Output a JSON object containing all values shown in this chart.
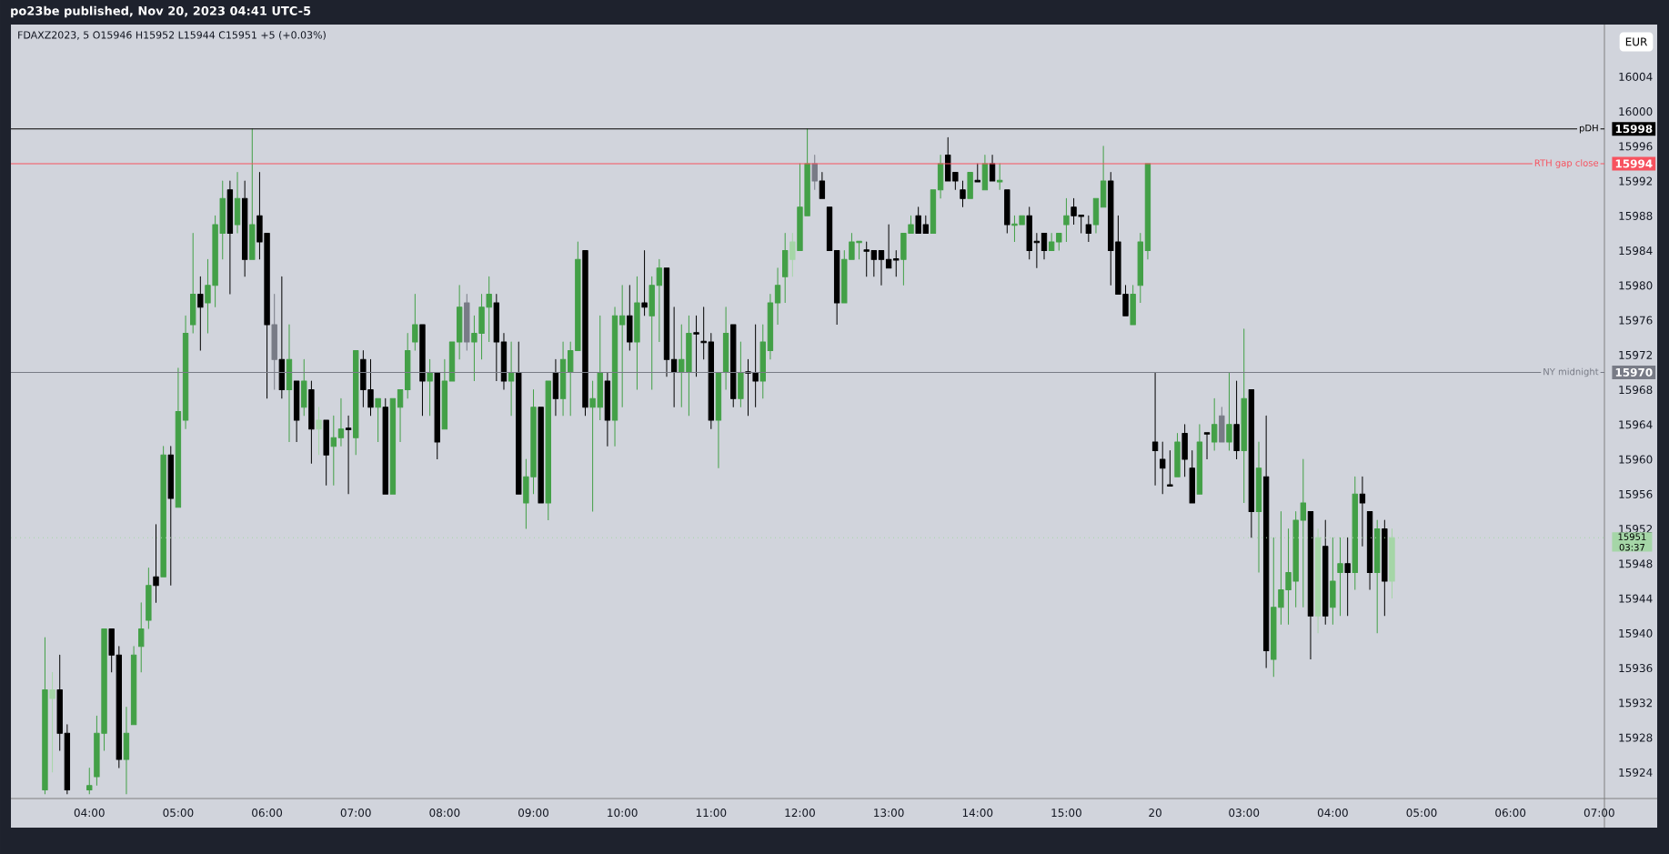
{
  "chart_data": {
    "type": "candlestick",
    "title": "FDAXZ2023, 5  O15946 H15952 L15944 C15951 +5 (+0.03%)",
    "annotations": [
      "po23be published, Nov 20, 2023 04:41 UTC-5",
      "EUR",
      "15998",
      "15994",
      "15970",
      "15951",
      "03:37"
    ],
    "categories": [
      null,
      null,
      null,
      null,
      null,
      null,
      "04:00",
      null,
      null,
      null,
      null,
      null,
      null,
      null,
      null,
      null,
      null,
      null,
      "05:00",
      null,
      null,
      null,
      null,
      null,
      null,
      null,
      null,
      null,
      null,
      null,
      "06:00",
      null,
      null,
      null,
      null,
      null,
      null,
      null,
      null,
      null,
      null,
      null,
      "07:00",
      null,
      null,
      null,
      null,
      null,
      null,
      null,
      null,
      null,
      null,
      null,
      "08:00",
      null,
      null,
      null,
      null,
      null,
      null,
      null,
      null,
      null,
      null,
      null,
      "09:00",
      null,
      null,
      null,
      null,
      null,
      null,
      null,
      null,
      null,
      null,
      null,
      "10:00",
      null,
      null,
      null,
      null,
      null,
      null,
      null,
      null,
      null,
      null,
      null,
      "11:00",
      null,
      null,
      null,
      null,
      null,
      null,
      null,
      null,
      null,
      null,
      null,
      "12:00",
      null,
      null,
      null,
      null,
      null,
      null,
      null,
      null,
      null,
      null,
      null,
      "13:00",
      null,
      null,
      null,
      null,
      null,
      null,
      null,
      null,
      null,
      null,
      null,
      "14:00",
      null,
      null,
      null,
      null,
      null,
      null,
      null,
      null,
      null,
      null,
      null,
      "15:00",
      null,
      null,
      null,
      null,
      null,
      null,
      null,
      null,
      null,
      null,
      null,
      "20",
      null,
      null,
      null,
      null,
      null,
      null,
      null,
      null,
      null,
      null,
      null,
      "03:00",
      null,
      null,
      null,
      null,
      null,
      null,
      null,
      null,
      null,
      null,
      null,
      "04:00",
      null,
      null,
      null,
      null,
      null,
      null,
      null,
      null,
      null,
      null,
      null,
      "05:00",
      null,
      null,
      null,
      null,
      null,
      null,
      null,
      null,
      null,
      null,
      null,
      "06:00",
      null,
      null,
      null,
      null,
      null,
      null,
      null,
      null,
      null,
      null,
      null,
      "07:00"
    ],
    "ohlc": [
      [
        15922,
        15939.5,
        15921.5,
        15933.5
      ],
      [
        15932.5,
        15935.5,
        15924,
        15933.5
      ],
      [
        15933.5,
        15937.5,
        15926.5,
        15928.5
      ],
      [
        15928.5,
        15929.5,
        15921.5,
        15922
      ],
      null,
      null,
      [
        15922,
        15924.5,
        15921.5,
        15922.5
      ],
      [
        15923.5,
        15930.5,
        15922.5,
        15928.5
      ],
      [
        15928.5,
        15940.5,
        15926.5,
        15940.5
      ],
      [
        15940.5,
        15940.5,
        15935.5,
        15937.5
      ],
      [
        15937.5,
        15938.5,
        15924.5,
        15925.5
      ],
      [
        15925.5,
        15931.5,
        15921.5,
        15928.5
      ],
      [
        15929.5,
        15938.5,
        15929.5,
        15937.5
      ],
      [
        15938.5,
        15943.5,
        15935.5,
        15940.5
      ],
      [
        15941.5,
        15947.5,
        15940.5,
        15945.5
      ],
      [
        15946.5,
        15952.5,
        15943.5,
        15945.5
      ],
      [
        15946.5,
        15961.5,
        15946.5,
        15960.5
      ],
      [
        15960.5,
        15961.5,
        15945.5,
        15955.5
      ],
      [
        15954.5,
        15970.5,
        15954.5,
        15965.5
      ],
      [
        15964.5,
        15976.5,
        15963.5,
        15974.5
      ],
      [
        15975.5,
        15986,
        15974.5,
        15979
      ],
      [
        15979,
        15981,
        15972.5,
        15977.5
      ],
      [
        15978,
        15983,
        15974.5,
        15980
      ],
      [
        15980,
        15988,
        15977.5,
        15987
      ],
      [
        15986,
        15992,
        15983,
        15990
      ],
      [
        15991,
        15992,
        15979,
        15986
      ],
      [
        15987,
        15993,
        15986,
        15990
      ],
      [
        15990,
        15992,
        15981,
        15983
      ],
      [
        15983,
        15998,
        15983,
        15987
      ],
      [
        15988,
        15993,
        15983,
        15985
      ],
      [
        15986,
        15986,
        15967,
        15975.5
      ],
      [
        15975.5,
        15979,
        15968,
        15971.5
      ],
      [
        15971.5,
        15981,
        15967,
        15968
      ],
      [
        15968,
        15975.5,
        15962,
        15971.5
      ],
      [
        15969,
        15969,
        15962,
        15964.5
      ],
      [
        15966,
        15971.5,
        15965,
        15969
      ],
      [
        15968,
        15969,
        15959.5,
        15963.5
      ],
      [
        15963.5,
        15966,
        15960.5,
        15964.5
      ],
      [
        15964.5,
        15964.5,
        15957,
        15960.5
      ],
      [
        15961.5,
        15965,
        15957,
        15962.5
      ],
      [
        15962.5,
        15967,
        15961.5,
        15963.5
      ],
      [
        15963.5,
        15965,
        15956,
        15963.5
      ],
      [
        15962.5,
        15972.5,
        15960.5,
        15972.5
      ],
      [
        15971.5,
        15972.5,
        15966,
        15968
      ],
      [
        15968,
        15971.5,
        15965,
        15966
      ],
      [
        15966,
        15967,
        15962,
        15967
      ],
      [
        15966,
        15967,
        15956,
        15956
      ],
      [
        15956,
        15967,
        15956,
        15967
      ],
      [
        15966,
        15968,
        15962,
        15968
      ],
      [
        15968,
        15974.5,
        15967,
        15972.5
      ],
      [
        15973.5,
        15979,
        15972.5,
        15975.5
      ],
      [
        15975.5,
        15975.5,
        15965,
        15969
      ],
      [
        15969,
        15971.5,
        15965,
        15970
      ],
      [
        15970,
        15970,
        15960,
        15962
      ],
      [
        15963.5,
        15971.5,
        15963.5,
        15969
      ],
      [
        15969,
        15973.5,
        15969,
        15973.5
      ],
      [
        15973.5,
        15980,
        15971.5,
        15977.5
      ],
      [
        15978,
        15979,
        15972.5,
        15973.5
      ],
      [
        15973.5,
        15976.5,
        15969,
        15974.5
      ],
      [
        15974.5,
        15979,
        15971.5,
        15977.5
      ],
      [
        15977.5,
        15981,
        15973.5,
        15979
      ],
      [
        15978,
        15979,
        15969,
        15973.5
      ],
      [
        15973.5,
        15974.5,
        15968,
        15969
      ],
      [
        15969,
        15973.5,
        15965,
        15970
      ],
      [
        15970,
        15973.5,
        15956,
        15956
      ],
      [
        15955,
        15960,
        15952,
        15958
      ],
      [
        15958,
        15968,
        15956,
        15966
      ],
      [
        15966,
        15966,
        15955,
        15955
      ],
      [
        15955,
        15969,
        15953,
        15969
      ],
      [
        15970,
        15971.5,
        15965,
        15967
      ],
      [
        15967,
        15973.5,
        15965,
        15971.5
      ],
      [
        15970,
        15973.5,
        15965,
        15972.5
      ],
      [
        15972.5,
        15985,
        15972.5,
        15983
      ],
      [
        15984,
        15984,
        15965,
        15966
      ],
      [
        15966,
        15969,
        15954,
        15967
      ],
      [
        15966,
        15976.5,
        15964.5,
        15970
      ],
      [
        15969,
        15970,
        15961.5,
        15964.5
      ],
      [
        15964.5,
        15977.5,
        15961.5,
        15976.5
      ],
      [
        15975.5,
        15980,
        15966,
        15976.5
      ],
      [
        15976.5,
        15980,
        15972.5,
        15973.5
      ],
      [
        15973.5,
        15981,
        15968,
        15978
      ],
      [
        15978,
        15984,
        15976.5,
        15977.5
      ],
      [
        15976.5,
        15981,
        15968,
        15980
      ],
      [
        15980,
        15983,
        15973.5,
        15982
      ],
      [
        15982,
        15982,
        15969.5,
        15971.5
      ],
      [
        15971.5,
        15977.5,
        15966,
        15970
      ],
      [
        15970,
        15975.5,
        15966,
        15971.5
      ],
      [
        15970,
        15976.5,
        15965,
        15974.5
      ],
      [
        15974.5,
        15976.5,
        15969.5,
        15974.5
      ],
      [
        15973.5,
        15977.5,
        15971.5,
        15973.5
      ],
      [
        15973.5,
        15974.5,
        15963.5,
        15964.5
      ],
      [
        15964.5,
        15970,
        15959,
        15970
      ],
      [
        15970,
        15977.5,
        15968,
        15974.5
      ],
      [
        15975.5,
        15975.5,
        15966,
        15967
      ],
      [
        15967,
        15973.5,
        15966,
        15970
      ],
      [
        15970,
        15971.5,
        15965,
        15970
      ],
      [
        15970,
        15975.5,
        15966,
        15969
      ],
      [
        15969,
        15975.5,
        15967,
        15973.5
      ],
      [
        15972.5,
        15979,
        15971.5,
        15978
      ],
      [
        15978,
        15982,
        15975.5,
        15980
      ],
      [
        15981,
        15986,
        15978,
        15984
      ],
      [
        15983,
        15986,
        15981,
        15985
      ],
      [
        15984,
        15994,
        15984,
        15989
      ],
      [
        15988,
        15998,
        15988,
        15994
      ],
      [
        15994,
        15995,
        15991,
        15992
      ],
      [
        15992,
        15993,
        15990,
        15990
      ],
      [
        15989,
        15989,
        15984,
        15984
      ],
      [
        15984,
        15984,
        15975.5,
        15978
      ],
      [
        15978,
        15984,
        15978,
        15983
      ],
      [
        15983,
        15986,
        15983,
        15985
      ],
      [
        15985,
        15985,
        15983,
        15985
      ],
      [
        15984,
        15985,
        15981,
        15984
      ],
      [
        15984,
        15984,
        15981,
        15983
      ],
      [
        15984,
        15984,
        15980,
        15983
      ],
      [
        15983,
        15987,
        15982,
        15982
      ],
      [
        15983,
        15984,
        15981,
        15983
      ],
      [
        15983,
        15986,
        15980,
        15986
      ],
      [
        15986,
        15988,
        15986,
        15987
      ],
      [
        15988,
        15989,
        15986,
        15986
      ],
      [
        15987,
        15988,
        15986,
        15986
      ],
      [
        15986,
        15991,
        15986,
        15991
      ],
      [
        15991,
        15995,
        15990,
        15994
      ],
      [
        15995,
        15997,
        15992,
        15992
      ],
      [
        15993,
        15993,
        15991,
        15992
      ],
      [
        15991,
        15992,
        15989,
        15990
      ],
      [
        15990,
        15993,
        15990,
        15993
      ],
      [
        15992,
        15994,
        15992,
        15992
      ],
      [
        15991,
        15995,
        15991,
        15994
      ],
      [
        15994,
        15995,
        15992,
        15992
      ],
      [
        15992,
        15994,
        15991,
        15992
      ],
      [
        15991,
        15991,
        15986,
        15987
      ],
      [
        15987,
        15988,
        15985,
        15987
      ],
      [
        15987,
        15988,
        15987,
        15988
      ],
      [
        15988,
        15989,
        15983,
        15984
      ],
      [
        15985,
        15986,
        15982,
        15985
      ],
      [
        15986,
        15986,
        15983,
        15984
      ],
      [
        15984,
        15986,
        15984,
        15985
      ],
      [
        15985,
        15986,
        15984,
        15986
      ],
      [
        15987,
        15990,
        15985,
        15988
      ],
      [
        15989,
        15990,
        15987,
        15988
      ],
      [
        15988,
        15988,
        15986,
        15988
      ],
      [
        15987,
        15988,
        15985,
        15986
      ],
      [
        15987,
        15990,
        15986,
        15990
      ],
      [
        15989,
        15996,
        15989,
        15992
      ],
      [
        15992,
        15993,
        15980,
        15984
      ],
      [
        15985,
        15988,
        15979,
        15979
      ],
      [
        15979,
        15980,
        15976.5,
        15976.5
      ],
      [
        15975.5,
        15980,
        15975.5,
        15979
      ],
      [
        15980,
        15986,
        15978,
        15985
      ],
      [
        15984,
        15994,
        15983,
        15994
      ],
      [
        15962,
        15970,
        15957,
        15961
      ],
      [
        15960,
        15962,
        15956,
        15959
      ],
      [
        15957,
        15961,
        15957,
        15957
      ],
      [
        15958,
        15963,
        15958,
        15962
      ],
      [
        15963,
        15964,
        15958,
        15960
      ],
      [
        15959,
        15961,
        15955,
        15955
      ],
      [
        15956,
        15964,
        15956,
        15962
      ],
      [
        15963,
        15963,
        15960,
        15963
      ],
      [
        15962,
        15967,
        15961,
        15964
      ],
      [
        15965,
        15966,
        15962,
        15962
      ],
      [
        15962,
        15970,
        15961,
        15964
      ],
      [
        15964,
        15969,
        15960,
        15961
      ],
      [
        15961,
        15975,
        15955,
        15967
      ],
      [
        15968,
        15968,
        15951,
        15954
      ],
      [
        15954,
        15962,
        15947,
        15959
      ],
      [
        15958,
        15965,
        15936,
        15938
      ],
      [
        15937,
        15951,
        15935,
        15943
      ],
      [
        15943,
        15954,
        15941,
        15945
      ],
      [
        15945,
        15952,
        15941,
        15947
      ],
      [
        15946,
        15954,
        15943,
        15953
      ],
      [
        15953,
        15960,
        15943,
        15955
      ],
      [
        15954,
        15954,
        15937,
        15942
      ],
      [
        15942,
        15952,
        15940,
        15951
      ],
      [
        15950,
        15953,
        15941,
        15942
      ],
      [
        15943,
        15951,
        15941,
        15946
      ],
      [
        15947,
        15951,
        15942,
        15948
      ],
      [
        15948,
        15951,
        15942,
        15947
      ],
      [
        15947,
        15958,
        15945,
        15956
      ],
      [
        15956,
        15958,
        15950,
        15955
      ],
      [
        15954,
        15954,
        15945,
        15947
      ],
      [
        15947,
        15953,
        15940,
        15952
      ],
      [
        15952,
        15953,
        15942,
        15946
      ],
      [
        15946,
        15952,
        15944,
        15951
      ],
      null,
      null,
      null,
      null,
      null,
      null,
      null,
      null,
      null,
      null,
      null,
      null,
      null,
      null,
      null,
      null,
      null,
      null,
      null,
      null,
      null,
      null,
      null,
      null,
      null,
      null,
      null,
      null
    ],
    "colors": [
      "#43a047",
      "#a5d6a7",
      "#000000",
      "#000000",
      null,
      null,
      "#43a047",
      "#43a047",
      "#43a047",
      "#000000",
      "#000000",
      "#43a047",
      "#43a047",
      "#43a047",
      "#43a047",
      "#000000",
      "#43a047",
      "#000000",
      "#43a047",
      "#43a047",
      "#43a047",
      "#000000",
      "#43a047",
      "#43a047",
      "#43a047",
      "#000000",
      "#43a047",
      "#000000",
      "#43a047",
      "#000000",
      "#000000",
      "#787b86",
      "#000000",
      "#43a047",
      "#000000",
      "#43a047",
      "#000000",
      "#a5d6a7",
      "#000000",
      "#43a047",
      "#43a047",
      "#000000",
      "#43a047",
      "#000000",
      "#000000",
      "#43a047",
      "#000000",
      "#43a047",
      "#43a047",
      "#43a047",
      "#43a047",
      "#000000",
      "#43a047",
      "#000000",
      "#43a047",
      "#43a047",
      "#43a047",
      "#787b86",
      "#43a047",
      "#43a047",
      "#43a047",
      "#000000",
      "#000000",
      "#43a047",
      "#000000",
      "#43a047",
      "#43a047",
      "#000000",
      "#43a047",
      "#000000",
      "#43a047",
      "#43a047",
      "#43a047",
      "#000000",
      "#43a047",
      "#43a047",
      "#000000",
      "#43a047",
      "#43a047",
      "#000000",
      "#43a047",
      "#000000",
      "#43a047",
      "#43a047",
      "#000000",
      "#000000",
      "#43a047",
      "#43a047",
      "#000000",
      "#000000",
      "#000000",
      "#43a047",
      "#43a047",
      "#000000",
      "#43a047",
      "#000000",
      "#000000",
      "#43a047",
      "#43a047",
      "#43a047",
      "#43a047",
      "#a5d6a7",
      "#43a047",
      "#43a047",
      "#787b86",
      "#000000",
      "#000000",
      "#000000",
      "#43a047",
      "#43a047",
      "#43a047",
      "#000000",
      "#000000",
      "#000000",
      "#000000",
      "#000000",
      "#43a047",
      "#43a047",
      "#000000",
      "#000000",
      "#43a047",
      "#43a047",
      "#000000",
      "#000000",
      "#000000",
      "#43a047",
      "#000000",
      "#43a047",
      "#000000",
      "#43a047",
      "#000000",
      "#43a047",
      "#43a047",
      "#000000",
      "#000000",
      "#000000",
      "#43a047",
      "#43a047",
      "#43a047",
      "#000000",
      "#000000",
      "#000000",
      "#43a047",
      "#43a047",
      "#000000",
      "#000000",
      "#000000",
      "#43a047",
      "#43a047",
      "#43a047",
      "#000000",
      "#000000",
      "#000000",
      "#43a047",
      "#000000",
      "#000000",
      "#43a047",
      "#000000",
      "#43a047",
      "#787b86",
      "#43a047",
      "#000000",
      "#43a047",
      "#000000",
      "#43a047",
      "#000000",
      "#43a047",
      "#43a047",
      "#43a047",
      "#43a047",
      "#43a047",
      "#000000",
      "#a5d6a7",
      "#000000",
      "#43a047",
      "#43a047",
      "#000000",
      "#43a047",
      "#000000",
      "#000000",
      "#43a047",
      "#000000",
      "#a5d6a7",
      null,
      null,
      null,
      null,
      null,
      null,
      null,
      null,
      null,
      null,
      null,
      null,
      null,
      null,
      null,
      null,
      null,
      null,
      null,
      null,
      null,
      null,
      null,
      null,
      null,
      null,
      null,
      null
    ],
    "ylim": [
      15921,
      16010
    ],
    "yticks": [
      15924,
      15928,
      15932,
      15936,
      15940,
      15944,
      15948,
      15952,
      15956,
      15960,
      15964,
      15968,
      15972,
      15976,
      15980,
      15984,
      15988,
      15992,
      15996,
      16000,
      16004
    ],
    "ref_lines": [
      {
        "axis": "y",
        "value": 15998,
        "label": "pDH",
        "color": "#000000"
      },
      {
        "axis": "y",
        "value": 15994,
        "label": "RTH gap close",
        "color": "#f7525f"
      },
      {
        "axis": "y",
        "value": 15970,
        "label": "NY midnight",
        "color": "#787b86"
      },
      {
        "axis": "y",
        "value": 15951,
        "color": "#a5d6a7",
        "line_style": "dotted"
      }
    ]
  }
}
